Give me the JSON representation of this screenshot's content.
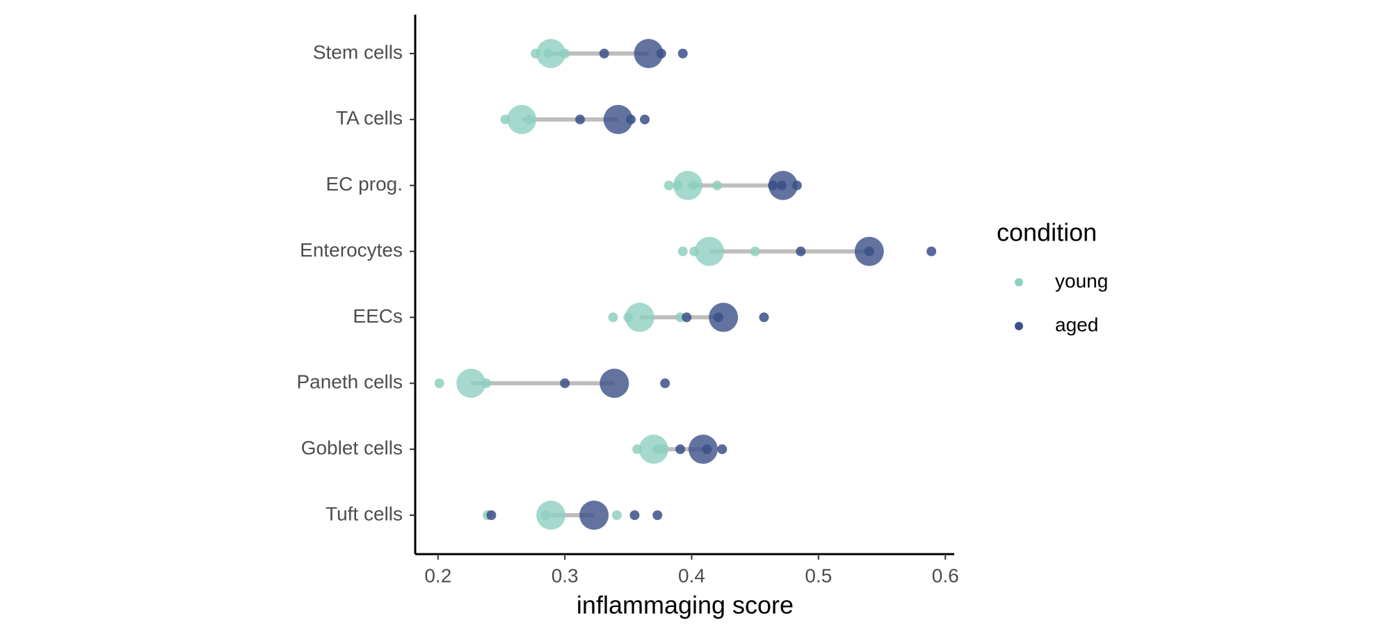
{
  "chart_data": {
    "type": "dumbbell",
    "x_label": "inflammaging score",
    "categories": [
      "Stem cells",
      "TA cells",
      "EC prog.",
      "Enterocytes",
      "EECs",
      "Paneth cells",
      "Goblet cells",
      "Tuft cells"
    ],
    "series": [
      {
        "name": "young",
        "color": "#8fd0c0",
        "values": [
          0.289,
          0.266,
          0.397,
          0.414,
          0.359,
          0.226,
          0.37,
          0.289
        ],
        "replicates": [
          [
            0.277,
            0.287,
            0.3
          ],
          [
            0.253,
            0.272
          ],
          [
            0.382,
            0.389,
            0.401,
            0.42
          ],
          [
            0.393,
            0.402,
            0.45
          ],
          [
            0.338,
            0.35,
            0.391
          ],
          [
            0.201,
            0.238
          ],
          [
            0.357,
            0.373,
            0.378
          ],
          [
            0.239,
            0.285,
            0.341
          ]
        ]
      },
      {
        "name": "aged",
        "color": "#3b5088",
        "values": [
          0.366,
          0.342,
          0.472,
          0.54,
          0.425,
          0.339,
          0.409,
          0.323
        ],
        "replicates": [
          [
            0.331,
            0.376,
            0.393
          ],
          [
            0.312,
            0.352,
            0.363
          ],
          [
            0.464,
            0.471,
            0.483
          ],
          [
            0.486,
            0.54,
            0.589
          ],
          [
            0.396,
            0.421,
            0.457
          ],
          [
            0.3,
            0.379
          ],
          [
            0.391,
            0.412,
            0.424
          ],
          [
            0.242,
            0.355,
            0.373
          ]
        ]
      }
    ],
    "xlim": [
      0.182,
      0.607
    ],
    "xticks": [
      0.2,
      0.3,
      0.4,
      0.5,
      0.6
    ],
    "legend_title": "condition",
    "legend": "right"
  }
}
